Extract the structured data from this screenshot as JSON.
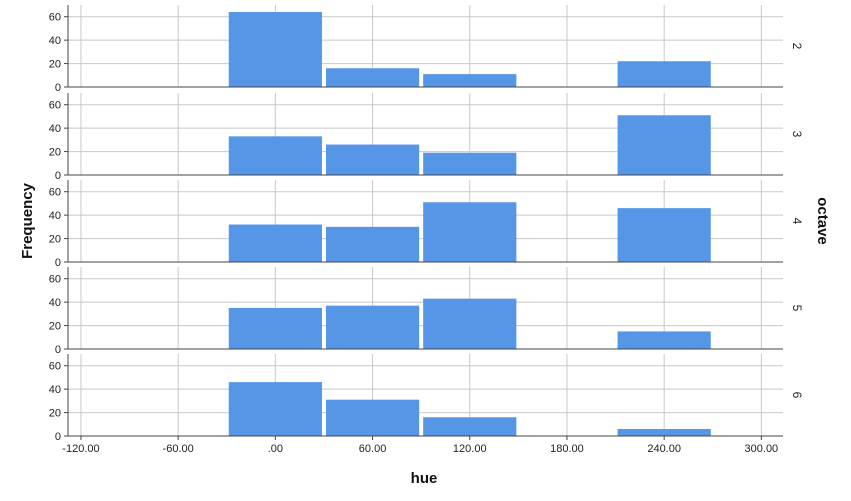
{
  "chart_data": {
    "type": "bar",
    "subtype": "histogram-panels",
    "xlabel": "hue",
    "ylabel": "Frequency",
    "panel_label": "octave",
    "bar_color": "#5596e6",
    "grid": true,
    "bin_width": 60,
    "xlim": [
      -120,
      300
    ],
    "ylim": [
      0,
      70
    ],
    "x_ticks": [
      -120,
      -60,
      0,
      60,
      120,
      180,
      240,
      300
    ],
    "x_tick_labels": [
      "-120.00",
      "-60.00",
      ".00",
      "60.00",
      "120.00",
      "180.00",
      "240.00",
      "300.00"
    ],
    "y_ticks": [
      0,
      20,
      40,
      60
    ],
    "y_tick_labels": [
      "0",
      "20",
      "40",
      "60"
    ],
    "bins": [
      0,
      60,
      120,
      240
    ],
    "series": [
      {
        "name": "2",
        "values": [
          64,
          16,
          11,
          22
        ]
      },
      {
        "name": "3",
        "values": [
          33,
          26,
          19,
          51
        ]
      },
      {
        "name": "4",
        "values": [
          32,
          30,
          51,
          46
        ]
      },
      {
        "name": "5",
        "values": [
          35,
          37,
          43,
          15
        ]
      },
      {
        "name": "6",
        "values": [
          46,
          31,
          16,
          6
        ]
      }
    ]
  }
}
